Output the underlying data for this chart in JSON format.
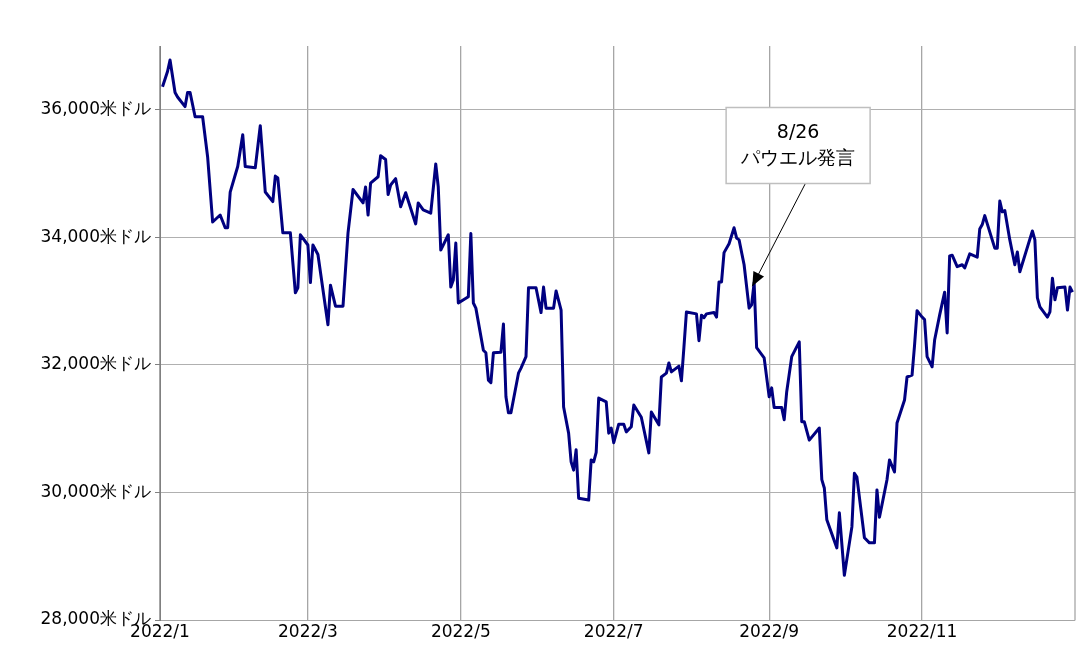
{
  "chart_data": {
    "type": "line",
    "ylim": [
      28000,
      37000
    ],
    "yticks": [
      {
        "value": 28000,
        "label": "28,000米ドル"
      },
      {
        "value": 30000,
        "label": "30,000米ドル"
      },
      {
        "value": 32000,
        "label": "32,000米ドル"
      },
      {
        "value": 34000,
        "label": "34,000米ドル"
      },
      {
        "value": 36000,
        "label": "36,000米ドル"
      }
    ],
    "xlim": [
      "2022-01-01",
      "2023-01-01"
    ],
    "xticks": [
      {
        "value": "2022-01",
        "label": "2022/1"
      },
      {
        "value": "2022-03",
        "label": "2022/3"
      },
      {
        "value": "2022-05",
        "label": "2022/5"
      },
      {
        "value": "2022-07",
        "label": "2022/7"
      },
      {
        "value": "2022-09",
        "label": "2022/9"
      },
      {
        "value": "2022-11",
        "label": "2022/11"
      }
    ],
    "grid": true,
    "legend": false,
    "marker": "none",
    "line_style": "solid",
    "annotations": [
      {
        "text": "8/26\nパウエル発言",
        "x": "2022-08-26",
        "y": 33290
      }
    ],
    "series": [
      {
        "color": "#000080",
        "x": [
          "2022-01-02",
          "2022-01-04",
          "2022-01-05",
          "2022-01-07",
          "2022-01-08",
          "2022-01-11",
          "2022-01-12",
          "2022-01-13",
          "2022-01-15",
          "2022-01-18",
          "2022-01-20",
          "2022-01-22",
          "2022-01-25",
          "2022-01-27",
          "2022-01-28",
          "2022-01-29",
          "2022-02-01",
          "2022-02-03",
          "2022-02-04",
          "2022-02-08",
          "2022-02-10",
          "2022-02-12",
          "2022-02-15",
          "2022-02-16",
          "2022-02-17",
          "2022-02-19",
          "2022-02-22",
          "2022-02-24",
          "2022-02-25",
          "2022-02-26",
          "2022-03-01",
          "2022-03-02",
          "2022-03-03",
          "2022-03-05",
          "2022-03-09",
          "2022-03-10",
          "2022-03-12",
          "2022-03-15",
          "2022-03-17",
          "2022-03-19",
          "2022-03-23",
          "2022-03-24",
          "2022-03-25",
          "2022-03-26",
          "2022-03-29",
          "2022-03-30",
          "2022-04-01",
          "2022-04-02",
          "2022-04-03",
          "2022-04-05",
          "2022-04-07",
          "2022-04-09",
          "2022-04-13",
          "2022-04-14",
          "2022-04-16",
          "2022-04-19",
          "2022-04-21",
          "2022-04-22",
          "2022-04-23",
          "2022-04-26",
          "2022-04-27",
          "2022-04-28",
          "2022-04-29",
          "2022-04-30",
          "2022-05-04",
          "2022-05-05",
          "2022-05-06",
          "2022-05-07",
          "2022-05-10",
          "2022-05-11",
          "2022-05-12",
          "2022-05-13",
          "2022-05-14",
          "2022-05-17",
          "2022-05-18",
          "2022-05-19",
          "2022-05-20",
          "2022-05-21",
          "2022-05-24",
          "2022-05-25",
          "2022-05-27",
          "2022-05-28",
          "2022-05-31",
          "2022-06-02",
          "2022-06-03",
          "2022-06-04",
          "2022-06-07",
          "2022-06-08",
          "2022-06-10",
          "2022-06-11",
          "2022-06-13",
          "2022-06-14",
          "2022-06-15",
          "2022-06-16",
          "2022-06-17",
          "2022-06-21",
          "2022-06-22",
          "2022-06-23",
          "2022-06-24",
          "2022-06-25",
          "2022-06-28",
          "2022-06-29",
          "2022-06-30",
          "2022-07-01",
          "2022-07-03",
          "2022-07-05",
          "2022-07-06",
          "2022-07-08",
          "2022-07-09",
          "2022-07-12",
          "2022-07-15",
          "2022-07-16",
          "2022-07-19",
          "2022-07-20",
          "2022-07-22",
          "2022-07-23",
          "2022-07-24",
          "2022-07-27",
          "2022-07-28",
          "2022-07-29",
          "2022-07-30",
          "2022-08-03",
          "2022-08-04",
          "2022-08-05",
          "2022-08-06",
          "2022-08-07",
          "2022-08-10",
          "2022-08-11",
          "2022-08-12",
          "2022-08-13",
          "2022-08-14",
          "2022-08-16",
          "2022-08-18",
          "2022-08-19",
          "2022-08-20",
          "2022-08-22",
          "2022-08-24",
          "2022-08-25",
          "2022-08-26",
          "2022-08-27",
          "2022-08-30",
          "2022-09-01",
          "2022-09-02",
          "2022-09-03",
          "2022-09-06",
          "2022-09-07",
          "2022-09-08",
          "2022-09-10",
          "2022-09-13",
          "2022-09-14",
          "2022-09-15",
          "2022-09-17",
          "2022-09-21",
          "2022-09-22",
          "2022-09-23",
          "2022-09-24",
          "2022-09-28",
          "2022-09-29",
          "2022-10-01",
          "2022-10-04",
          "2022-10-05",
          "2022-10-06",
          "2022-10-09",
          "2022-10-11",
          "2022-10-13",
          "2022-10-14",
          "2022-10-15",
          "2022-10-18",
          "2022-10-19",
          "2022-10-21",
          "2022-10-22",
          "2022-10-25",
          "2022-10-26",
          "2022-10-28",
          "2022-10-29",
          "2022-10-30",
          "2022-11-01",
          "2022-11-02",
          "2022-11-03",
          "2022-11-05",
          "2022-11-06",
          "2022-11-08",
          "2022-11-10",
          "2022-11-11",
          "2022-11-12",
          "2022-11-13",
          "2022-11-15",
          "2022-11-17",
          "2022-11-18",
          "2022-11-20",
          "2022-11-23",
          "2022-11-24",
          "2022-11-25",
          "2022-11-26",
          "2022-11-30",
          "2022-12-01",
          "2022-12-02",
          "2022-12-03",
          "2022-12-04",
          "2022-12-06",
          "2022-12-08",
          "2022-12-09",
          "2022-12-10",
          "2022-12-15",
          "2022-12-16",
          "2022-12-17",
          "2022-12-18",
          "2022-12-21",
          "2022-12-22",
          "2022-12-23",
          "2022-12-24",
          "2022-12-25",
          "2022-12-28",
          "2022-12-29",
          "2022-12-30",
          "2022-12-31"
        ],
        "values": [
          36360,
          36600,
          36780,
          36270,
          36200,
          36050,
          36270,
          36270,
          35890,
          35890,
          35260,
          34240,
          34350,
          34150,
          34150,
          34710,
          35110,
          35610,
          35110,
          35090,
          35750,
          34710,
          34560,
          34960,
          34930,
          34070,
          34070,
          33130,
          33210,
          34040,
          33880,
          33290,
          33880,
          33730,
          32630,
          33250,
          32920,
          32920,
          34070,
          34750,
          34540,
          34790,
          34350,
          34850,
          34950,
          35280,
          35220,
          34670,
          34820,
          34920,
          34480,
          34700,
          34210,
          34540,
          34430,
          34380,
          35150,
          34790,
          33800,
          34040,
          33220,
          33330,
          33910,
          32970,
          33070,
          34060,
          32970,
          32890,
          32230,
          32190,
          31760,
          31720,
          32190,
          32200,
          32640,
          31500,
          31250,
          31250,
          31870,
          31950,
          32130,
          33210,
          33210,
          32820,
          33220,
          32890,
          32890,
          33160,
          32860,
          31340,
          30930,
          30480,
          30350,
          30670,
          29910,
          29880,
          30510,
          30480,
          30630,
          31480,
          31420,
          30930,
          31010,
          30780,
          31070,
          31070,
          30950,
          31030,
          31370,
          31180,
          30620,
          31260,
          31060,
          31810,
          31870,
          32030,
          31890,
          31980,
          31750,
          32280,
          32830,
          32800,
          32380,
          32780,
          32740,
          32800,
          32820,
          32750,
          33300,
          33300,
          33760,
          33900,
          34150,
          33990,
          33960,
          33570,
          32890,
          32940,
          33290,
          32270,
          32110,
          31500,
          31640,
          31330,
          31330,
          31140,
          31580,
          32130,
          32360,
          31110,
          31110,
          30820,
          31010,
          30200,
          30070,
          29570,
          29130,
          29680,
          28700,
          29460,
          30300,
          30240,
          29290,
          29210,
          29210,
          30040,
          29610,
          30200,
          30510,
          30320,
          31090,
          31450,
          31810,
          31840,
          32310,
          32850,
          32750,
          32710,
          32130,
          31970,
          32390,
          32780,
          33140,
          32500,
          33710,
          33720,
          33540,
          33570,
          33520,
          33740,
          33690,
          34130,
          34200,
          34340,
          33830,
          33830,
          34570,
          34400,
          34420,
          33960,
          33570,
          33770,
          33460,
          34100,
          33960,
          33050,
          32910,
          32750,
          32830,
          33360,
          33020,
          33210,
          33220,
          32860,
          33220,
          33140
        ]
      }
    ]
  }
}
